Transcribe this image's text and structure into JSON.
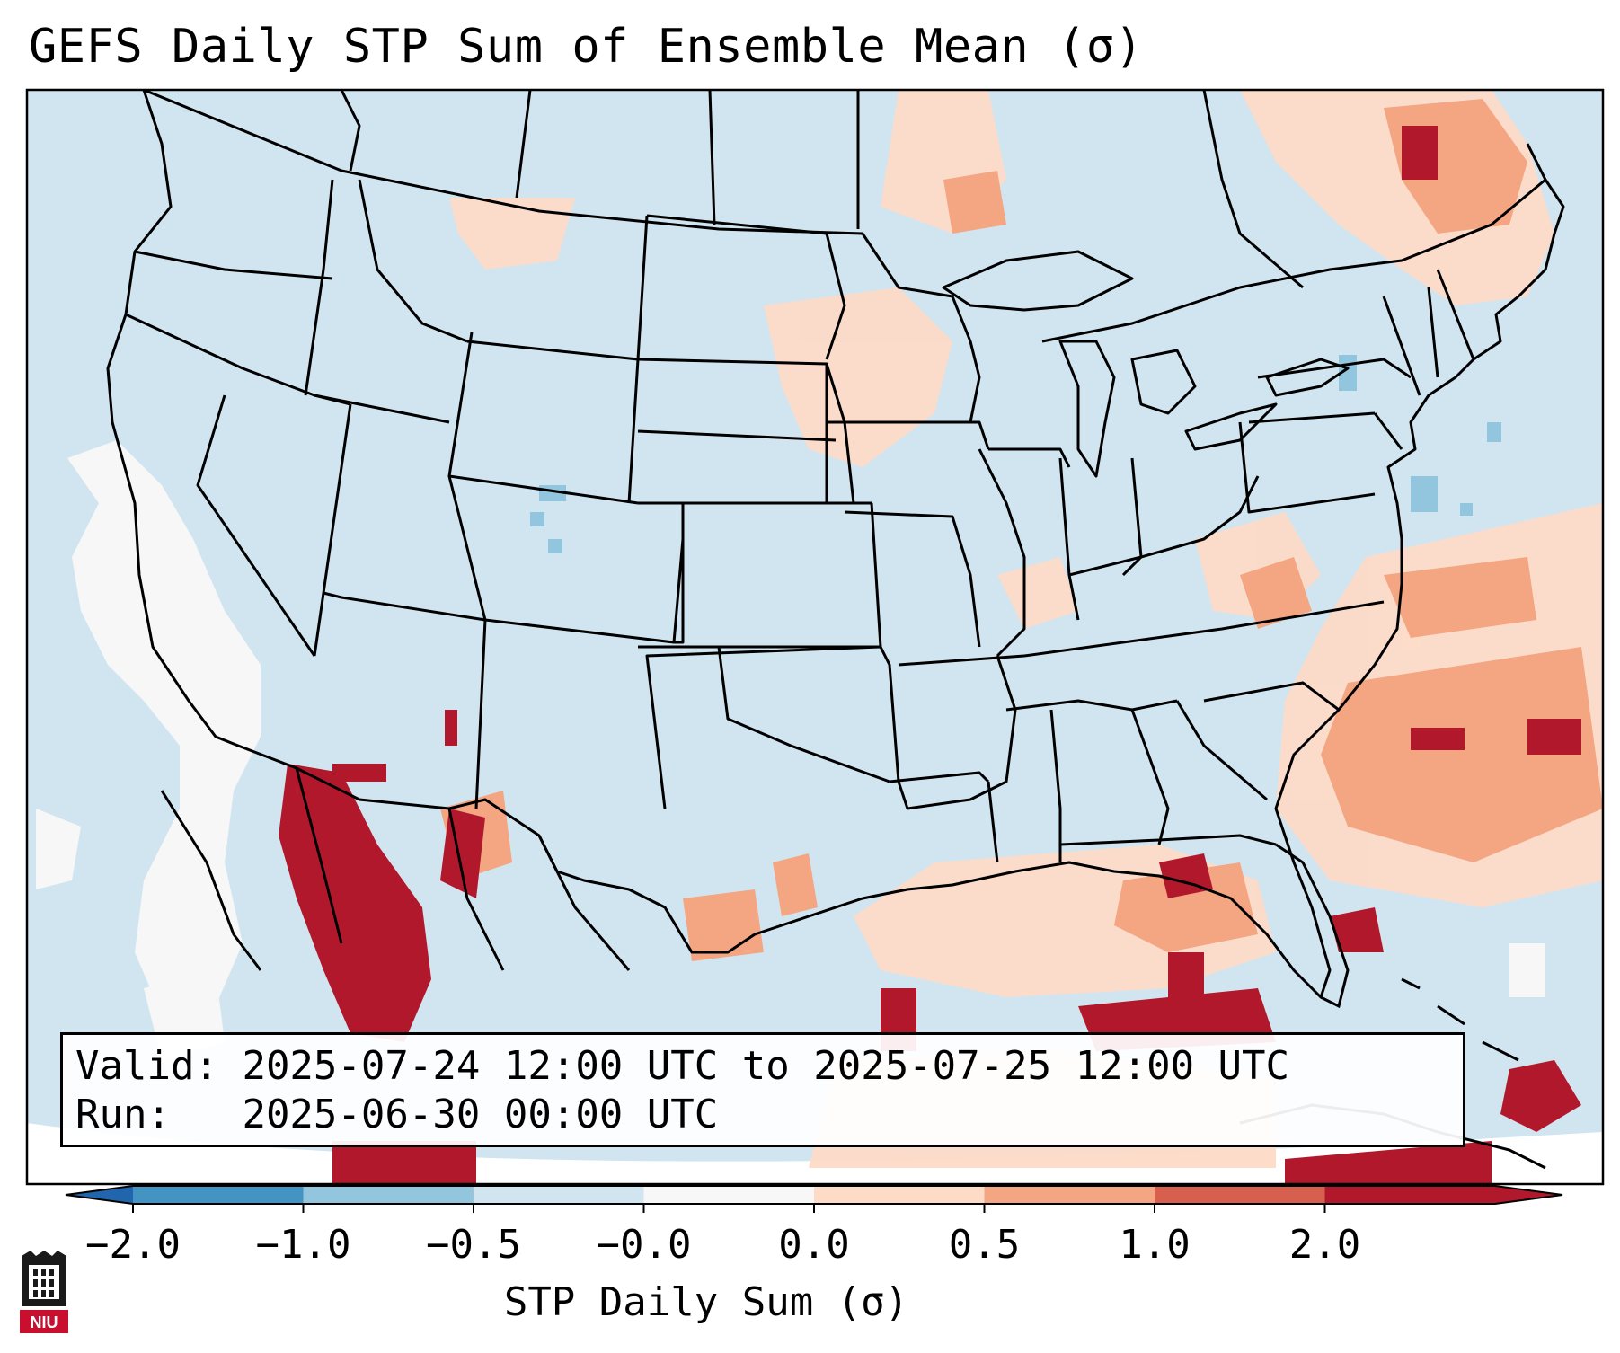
{
  "title": "GEFS Daily STP Sum of Ensemble Mean (σ)",
  "info": {
    "valid_label": "Valid:",
    "valid_value": "2025-07-24 12:00 UTC to 2025-07-25 12:00 UTC",
    "run_label": "Run:",
    "run_value": "2025-06-30 00:00 UTC"
  },
  "colorbar": {
    "title": "STP Daily Sum (σ)",
    "tick_labels": [
      "−2.0",
      "−1.0",
      "−0.5",
      "−0.0",
      "0.0",
      "0.5",
      "1.0",
      "2.0"
    ],
    "bin_colors": [
      "#4393c3",
      "#92c5de",
      "#d1e5f0",
      "#f7f7f7",
      "#fddbc7",
      "#f4a582",
      "#d6604d",
      "#b2182b"
    ],
    "under_color": "#2166ac",
    "over_color": "#b2182b"
  },
  "map": {
    "ocean_color": "#f7fbff",
    "background_color": "#d1e5f0",
    "boundary_color": "#000000",
    "region": "Contiguous United States, southern Canada, northern Mexico, Gulf of Mexico, western Atlantic"
  },
  "logo": {
    "text": "NIU",
    "icon": "niu-castle-logo-icon"
  }
}
